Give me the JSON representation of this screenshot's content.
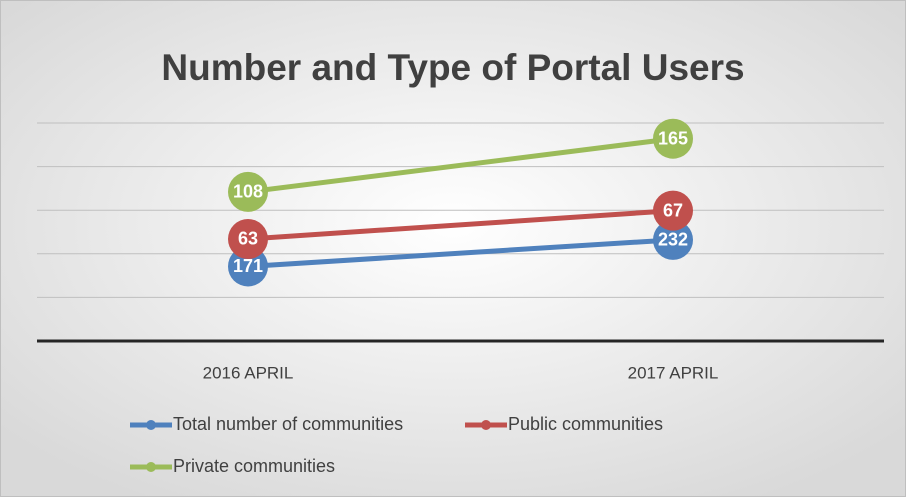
{
  "chart_data": {
    "type": "line",
    "title": "Number and Type of Portal Users",
    "categories": [
      "2016 APRIL",
      "2017 APRIL"
    ],
    "series": [
      {
        "name": "Total number of communities",
        "color": "#4f81bd",
        "values": [
          171,
          232
        ]
      },
      {
        "name": "Public communities",
        "color": "#c0504d",
        "values": [
          63,
          67
        ]
      },
      {
        "name": "Private communities",
        "color": "#9bbb59",
        "values": [
          108,
          165
        ]
      }
    ],
    "stacked": true,
    "ylim": [
      0,
      500
    ],
    "yticks": [
      0,
      100,
      200,
      300,
      400,
      500
    ],
    "grid": true
  }
}
